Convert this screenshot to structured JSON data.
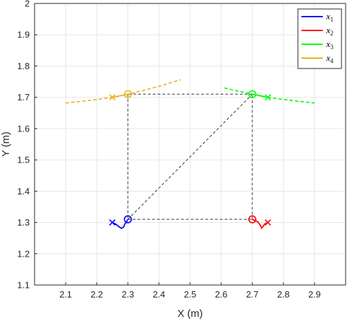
{
  "chart_data": {
    "type": "line",
    "title": "",
    "xlabel": "X (m)",
    "ylabel": "Y (m)",
    "xlim": [
      2.0,
      3.0
    ],
    "ylim": [
      1.1,
      2.0
    ],
    "xticks": [
      "2.1",
      "2.2",
      "2.3",
      "2.4",
      "2.5",
      "2.6",
      "2.7",
      "2.8",
      "2.9"
    ],
    "yticks": [
      "1.1",
      "1.2",
      "1.3",
      "1.4",
      "1.5",
      "1.6",
      "1.7",
      "1.8",
      "1.9",
      "2"
    ],
    "grid": true,
    "legend_position": "top-right",
    "colors": {
      "x1": "#0000ff",
      "x2": "#ff0000",
      "x3": "#00ff00",
      "x4": "#edb120",
      "formation": "#333333"
    },
    "series": [
      {
        "name": "x1",
        "color": "#0000ff",
        "trajectory": [
          [
            2.25,
            1.3
          ],
          [
            2.262,
            1.294
          ],
          [
            2.272,
            1.286
          ],
          [
            2.28,
            1.281
          ],
          [
            2.286,
            1.285
          ],
          [
            2.291,
            1.296
          ],
          [
            2.298,
            1.306
          ],
          [
            2.3,
            1.31
          ]
        ],
        "start": [
          2.25,
          1.3
        ],
        "end": [
          2.3,
          1.31
        ],
        "predicted": []
      },
      {
        "name": "x2",
        "color": "#ff0000",
        "trajectory": [
          [
            2.75,
            1.3
          ],
          [
            2.74,
            1.295
          ],
          [
            2.735,
            1.288
          ],
          [
            2.73,
            1.282
          ],
          [
            2.725,
            1.292
          ],
          [
            2.718,
            1.302
          ],
          [
            2.7,
            1.31
          ]
        ],
        "start": [
          2.75,
          1.3
        ],
        "end": [
          2.7,
          1.31
        ],
        "predicted": []
      },
      {
        "name": "x3",
        "color": "#00ff00",
        "trajectory": [
          [
            2.75,
            1.7
          ],
          [
            2.7,
            1.71
          ]
        ],
        "start": [
          2.75,
          1.7
        ],
        "end": [
          2.7,
          1.71
        ],
        "predicted": [
          [
            2.61,
            1.73
          ],
          [
            2.65,
            1.721
          ],
          [
            2.7,
            1.71
          ],
          [
            2.75,
            1.7
          ],
          [
            2.8,
            1.693
          ],
          [
            2.85,
            1.687
          ],
          [
            2.9,
            1.682
          ]
        ]
      },
      {
        "name": "x4",
        "color": "#edb120",
        "trajectory": [
          [
            2.25,
            1.7
          ],
          [
            2.3,
            1.71
          ]
        ],
        "start": [
          2.25,
          1.7
        ],
        "end": [
          2.3,
          1.71
        ],
        "predicted": [
          [
            2.1,
            1.682
          ],
          [
            2.15,
            1.687
          ],
          [
            2.2,
            1.693
          ],
          [
            2.25,
            1.7
          ],
          [
            2.3,
            1.71
          ],
          [
            2.35,
            1.722
          ],
          [
            2.4,
            1.735
          ],
          [
            2.47,
            1.756
          ]
        ]
      }
    ],
    "formation_edges": [
      [
        [
          2.3,
          1.31
        ],
        [
          2.7,
          1.31
        ]
      ],
      [
        [
          2.7,
          1.31
        ],
        [
          2.7,
          1.71
        ]
      ],
      [
        [
          2.7,
          1.71
        ],
        [
          2.3,
          1.71
        ]
      ],
      [
        [
          2.3,
          1.71
        ],
        [
          2.3,
          1.31
        ]
      ],
      [
        [
          2.3,
          1.31
        ],
        [
          2.7,
          1.71
        ]
      ]
    ]
  }
}
